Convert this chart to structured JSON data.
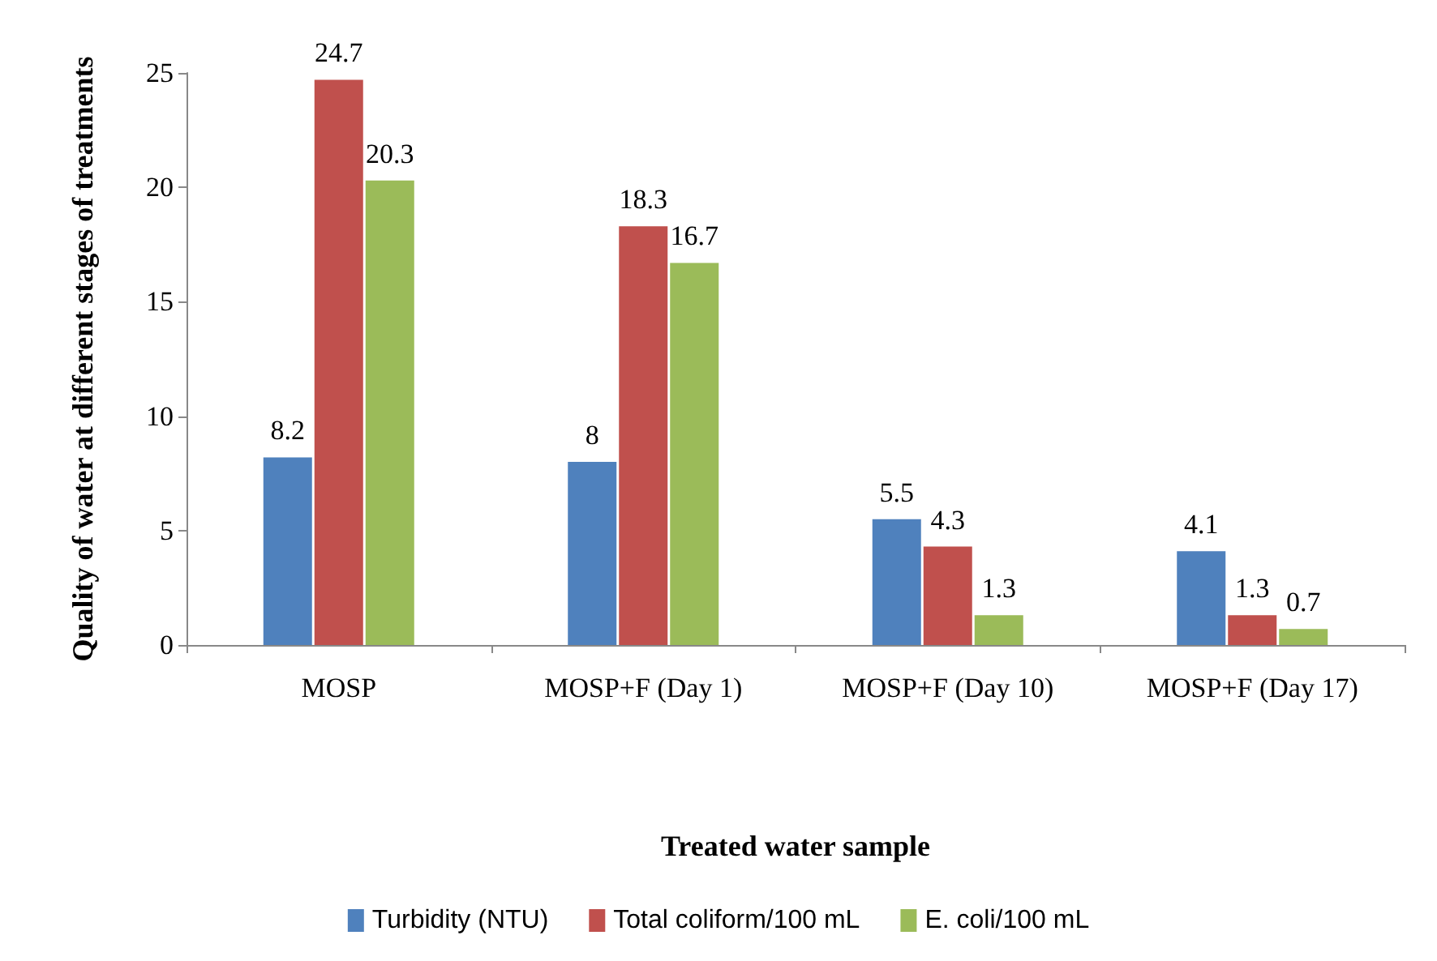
{
  "chart_data": {
    "type": "bar",
    "categories": [
      "MOSP",
      "MOSP+F (Day 1)",
      "MOSP+F (Day 10)",
      "MOSP+F (Day 17)"
    ],
    "series": [
      {
        "name": "Turbidity (NTU)",
        "color": "#4f81bd",
        "values": [
          8.2,
          8,
          5.5,
          4.1
        ]
      },
      {
        "name": "Total coliform/100 mL",
        "color": "#c0504d",
        "values": [
          24.7,
          18.3,
          4.3,
          1.3
        ]
      },
      {
        "name": "E. coli/100 mL",
        "color": "#9bbb59",
        "values": [
          20.3,
          16.7,
          1.3,
          0.7
        ]
      }
    ],
    "xlabel": "Treated water sample",
    "ylabel": "Quality of water at different stages of treatments",
    "ylim": [
      0,
      25
    ],
    "yticks": [
      0,
      5,
      10,
      15,
      20,
      25
    ],
    "data_labels": true,
    "legend": "bottom",
    "grid": false
  }
}
